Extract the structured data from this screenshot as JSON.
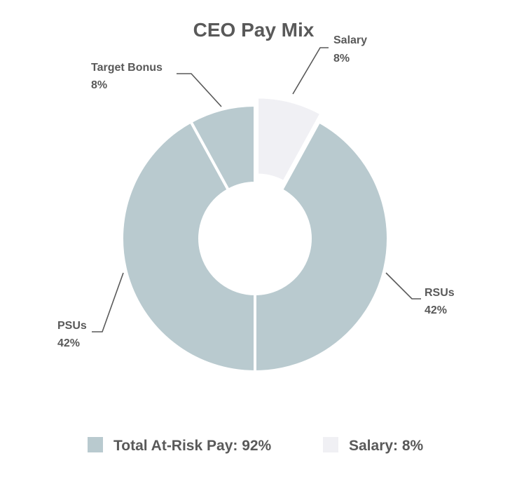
{
  "chart_data": {
    "type": "pie",
    "variant": "donut",
    "title": "CEO Pay Mix",
    "categories": [
      "Salary",
      "RSUs",
      "PSUs",
      "Target Bonus"
    ],
    "values": [
      8,
      42,
      42,
      8
    ],
    "value_labels": [
      "8%",
      "42%",
      "42%",
      "8%"
    ],
    "slice_colors": [
      "#f0f0f4",
      "#b9cacf",
      "#b9cacf",
      "#b9cacf"
    ],
    "exploded": [
      "Salary"
    ],
    "legend": [
      {
        "label": "Total At-Risk Pay: 92%",
        "color": "#b9cacf"
      },
      {
        "label": "Salary: 8%",
        "color": "#f0f0f4"
      }
    ],
    "legend_position": "bottom"
  }
}
